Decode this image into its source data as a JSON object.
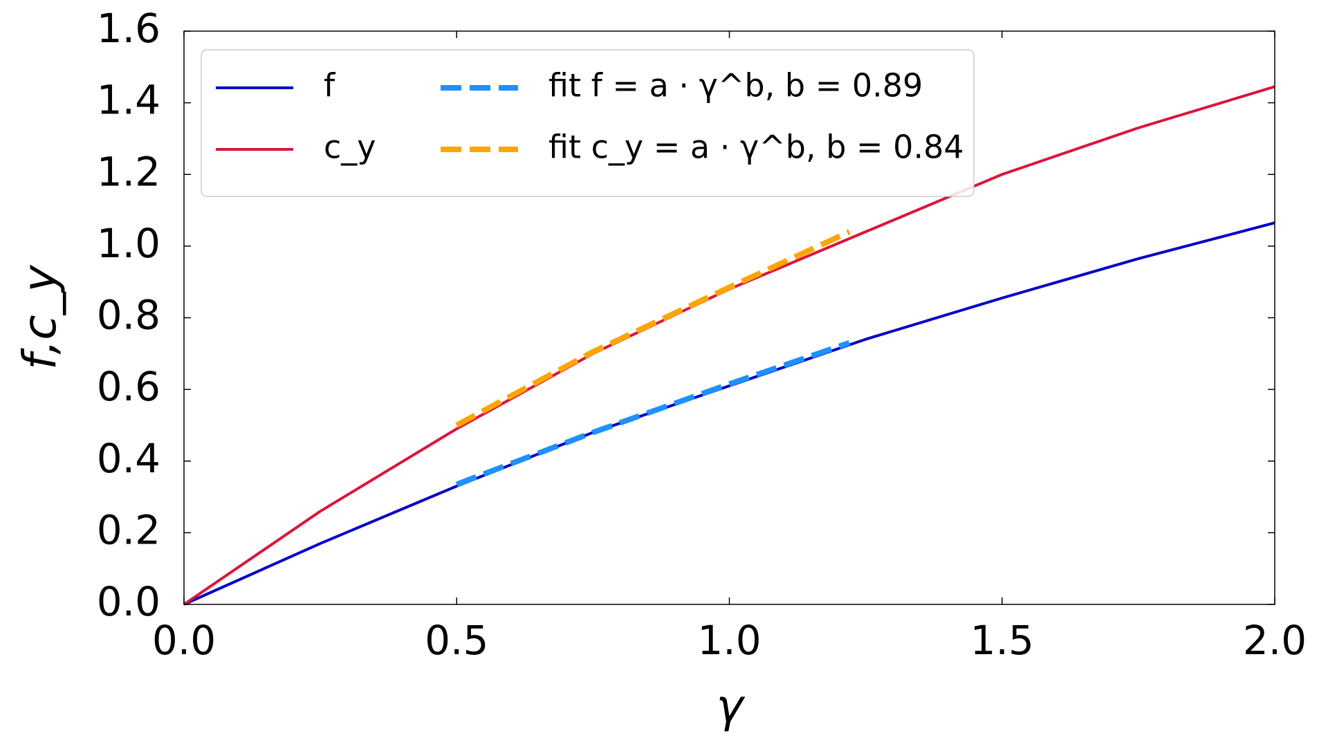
{
  "chart_data": {
    "type": "line",
    "xlabel": "γ",
    "ylabel": "f,c_y",
    "xlim": [
      0,
      2
    ],
    "ylim": [
      0,
      1.6
    ],
    "xticks": [
      {
        "value": 0,
        "label": "0.0"
      },
      {
        "value": 0.5,
        "label": "0.5"
      },
      {
        "value": 1,
        "label": "1.0"
      },
      {
        "value": 1.5,
        "label": "1.5"
      },
      {
        "value": 2,
        "label": "2.0"
      }
    ],
    "yticks": [
      {
        "value": 0,
        "label": "0.0"
      },
      {
        "value": 0.2,
        "label": "0.2"
      },
      {
        "value": 0.4,
        "label": "0.4"
      },
      {
        "value": 0.6,
        "label": "0.6"
      },
      {
        "value": 0.8,
        "label": "0.8"
      },
      {
        "value": 1,
        "label": "1.0"
      },
      {
        "value": 1.2,
        "label": "1.2"
      },
      {
        "value": 1.4,
        "label": "1.4"
      },
      {
        "value": 1.6,
        "label": "1.6"
      }
    ],
    "grid": false,
    "legend": "upper left",
    "series": [
      {
        "name": "f",
        "color": "#0000c8",
        "dash": false,
        "x": [
          0,
          0.25,
          0.5,
          0.75,
          1,
          1.25,
          1.5,
          1.75,
          2
        ],
        "values": [
          0,
          0.17,
          0.33,
          0.48,
          0.61,
          0.74,
          0.855,
          0.965,
          1.065
        ]
      },
      {
        "name": "c_y",
        "color": "#dc143c",
        "dash": false,
        "x": [
          0,
          0.25,
          0.5,
          0.75,
          1,
          1.25,
          1.5,
          1.75,
          2
        ],
        "values": [
          0,
          0.26,
          0.49,
          0.7,
          0.88,
          1.04,
          1.2,
          1.33,
          1.445
        ]
      },
      {
        "name": "fit f = a · γ^b, b = 0.89",
        "color": "#1e90ff",
        "dash": true,
        "x": [
          0.5,
          0.75,
          1,
          1.22
        ],
        "values": [
          0.335,
          0.48,
          0.615,
          0.73
        ]
      },
      {
        "name": "fit c_y = a · γ^b, b = 0.84",
        "color": "#ffa500",
        "dash": true,
        "x": [
          0.5,
          0.75,
          1,
          1.22
        ],
        "values": [
          0.5,
          0.705,
          0.885,
          1.04
        ]
      }
    ]
  }
}
